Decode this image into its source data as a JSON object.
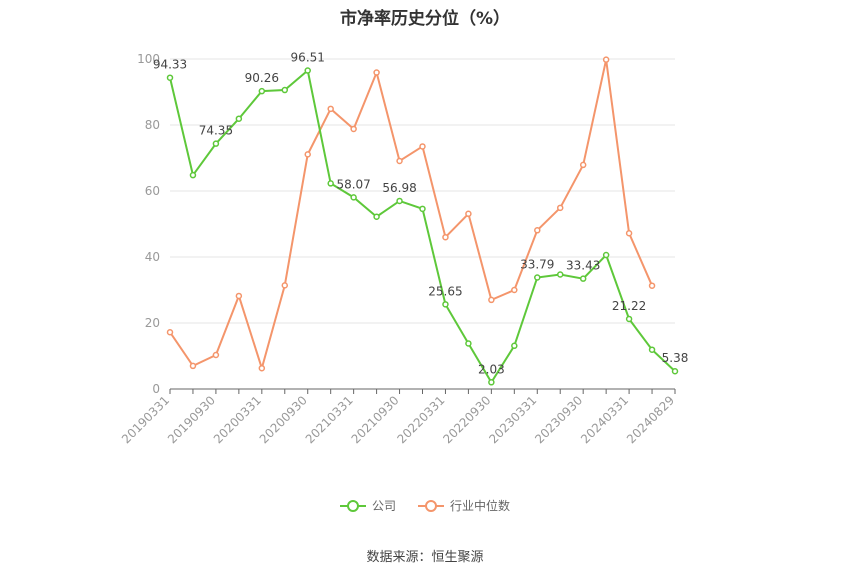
{
  "chart_data": {
    "type": "line",
    "title": "市净率历史分位（%）",
    "ylim": [
      0,
      100
    ],
    "yticks": [
      0,
      20,
      40,
      60,
      80,
      100
    ],
    "x": [
      "20190331",
      "20190630",
      "20190930",
      "20191231",
      "20200331",
      "20200630",
      "20200930",
      "20201231",
      "20210331",
      "20210630",
      "20210930",
      "20211231",
      "20220331",
      "20220630",
      "20220930",
      "20221231",
      "20230331",
      "20230630",
      "20230930",
      "20231231",
      "20240331",
      "20240630",
      "20240829"
    ],
    "xticks": [
      "20190331",
      "20190930",
      "20200331",
      "20200930",
      "20210331",
      "20210930",
      "20220331",
      "20220930",
      "20230331",
      "20230930",
      "20240331",
      "20240829"
    ],
    "grid": true,
    "legend_position": "bottom",
    "series": [
      {
        "name": "公司",
        "color": "#5ec83a",
        "values": [
          94.33,
          64.8,
          74.35,
          81.9,
          90.26,
          90.6,
          96.51,
          62.3,
          58.07,
          52.2,
          56.98,
          54.6,
          25.65,
          13.8,
          2.03,
          13.1,
          33.79,
          34.7,
          33.43,
          40.6,
          21.22,
          11.9,
          5.38
        ],
        "labels": [
          "94.33",
          "",
          "74.35",
          "",
          "90.26",
          "",
          "96.51",
          "",
          "58.07",
          "",
          "56.98",
          "",
          "25.65",
          "",
          "2.03",
          "",
          "33.79",
          "",
          "33.43",
          "",
          "21.22",
          "",
          "5.38"
        ]
      },
      {
        "name": "行业中位数",
        "color": "#f4956b",
        "values": [
          17.2,
          7.0,
          10.3,
          28.2,
          6.3,
          31.4,
          71.1,
          84.9,
          78.8,
          95.9,
          69.1,
          73.5,
          46.0,
          53.1,
          27.0,
          30.0,
          48.1,
          54.9,
          67.9,
          99.8,
          47.2,
          31.3,
          null
        ]
      }
    ]
  },
  "source": "数据来源：恒生聚源"
}
